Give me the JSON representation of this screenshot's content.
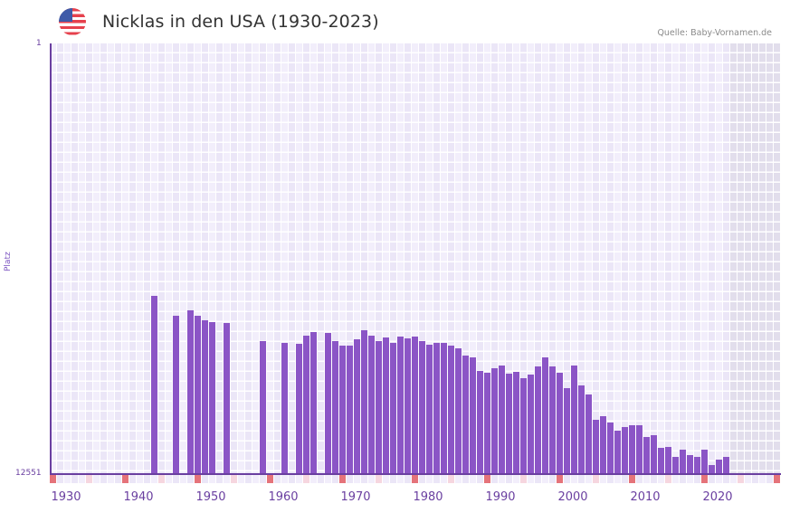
{
  "header": {
    "title": "Nicklas in den USA (1930-2023)",
    "source": "Quelle: Baby-Vornamen.de",
    "flag_icon": "us-flag-icon"
  },
  "axes": {
    "y_top": "1",
    "y_bottom": "12551",
    "y_label": "Platz",
    "x_ticks": [
      "1930",
      "1940",
      "1950",
      "1960",
      "1970",
      "1980",
      "1990",
      "2000",
      "2010",
      "2020"
    ]
  },
  "colors": {
    "bar": "#8b55c6",
    "axis": "#6a3fa0",
    "grid_a": "#f2eefb",
    "grid_b": "#ebe6f7",
    "future_bg": "#e2deec",
    "marker_strong": "#e5737a",
    "marker_soft": "#f6d6df"
  },
  "chart_data": {
    "type": "bar",
    "title": "Nicklas in den USA (1930-2023)",
    "xlabel": "",
    "ylabel": "Platz",
    "y_inverted": true,
    "ylim": [
      1,
      12551
    ],
    "x_range": [
      1928,
      2028
    ],
    "grid": true,
    "legend": null,
    "x": [
      1942,
      1945,
      1947,
      1948,
      1949,
      1950,
      1952,
      1957,
      1960,
      1962,
      1963,
      1964,
      1966,
      1967,
      1968,
      1969,
      1970,
      1971,
      1972,
      1973,
      1974,
      1975,
      1976,
      1977,
      1978,
      1979,
      1980,
      1981,
      1982,
      1983,
      1984,
      1985,
      1986,
      1987,
      1988,
      1989,
      1990,
      1991,
      1992,
      1993,
      1994,
      1995,
      1996,
      1997,
      1998,
      1999,
      2000,
      2001,
      2002,
      2003,
      2004,
      2005,
      2006,
      2007,
      2008,
      2009,
      2010,
      2011,
      2012,
      2013,
      2014,
      2015,
      2016,
      2017,
      2018,
      2019,
      2020,
      2021
    ],
    "values": [
      7357,
      7937,
      7779,
      7937,
      8069,
      8122,
      8148,
      8675,
      8728,
      8754,
      8517,
      8412,
      8438,
      8675,
      8807,
      8807,
      8622,
      8359,
      8517,
      8675,
      8570,
      8728,
      8543,
      8596,
      8543,
      8675,
      8781,
      8728,
      8728,
      8807,
      8886,
      9097,
      9150,
      9546,
      9598,
      9467,
      9387,
      9625,
      9572,
      9756,
      9651,
      9414,
      9150,
      9414,
      9598,
      10046,
      9387,
      9967,
      10231,
      10969,
      10864,
      11048,
      11285,
      11180,
      11127,
      11127,
      11470,
      11417,
      11786,
      11760,
      12050,
      11839,
      12003,
      12050,
      11839,
      12293,
      12135,
      12050
    ]
  }
}
